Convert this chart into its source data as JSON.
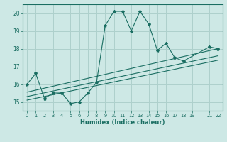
{
  "xlabel": "Humidex (Indice chaleur)",
  "bg_color": "#cde8e5",
  "line_color": "#1a6e62",
  "grid_color": "#aed0cc",
  "xlim": [
    -0.5,
    22.5
  ],
  "ylim": [
    14.5,
    20.5
  ],
  "xticks": [
    0,
    1,
    2,
    3,
    4,
    5,
    6,
    7,
    8,
    9,
    10,
    11,
    12,
    13,
    14,
    15,
    16,
    17,
    18,
    19,
    21,
    22
  ],
  "yticks": [
    15,
    16,
    17,
    18,
    19,
    20
  ],
  "series": [
    [
      0,
      16.0
    ],
    [
      1,
      16.6
    ],
    [
      2,
      15.2
    ],
    [
      3,
      15.5
    ],
    [
      4,
      15.5
    ],
    [
      5,
      14.9
    ],
    [
      6,
      15.0
    ],
    [
      7,
      15.5
    ],
    [
      8,
      16.1
    ],
    [
      9,
      19.3
    ],
    [
      10,
      20.1
    ],
    [
      11,
      20.1
    ],
    [
      12,
      19.0
    ],
    [
      13,
      20.1
    ],
    [
      14,
      19.4
    ],
    [
      15,
      17.9
    ],
    [
      16,
      18.3
    ],
    [
      17,
      17.5
    ],
    [
      18,
      17.3
    ],
    [
      21,
      18.1
    ],
    [
      22,
      18.0
    ]
  ],
  "trend_lines": [
    [
      [
        0,
        15.1
      ],
      [
        22,
        17.35
      ]
    ],
    [
      [
        0,
        15.3
      ],
      [
        22,
        17.6
      ]
    ],
    [
      [
        0,
        15.55
      ],
      [
        22,
        18.0
      ]
    ]
  ]
}
